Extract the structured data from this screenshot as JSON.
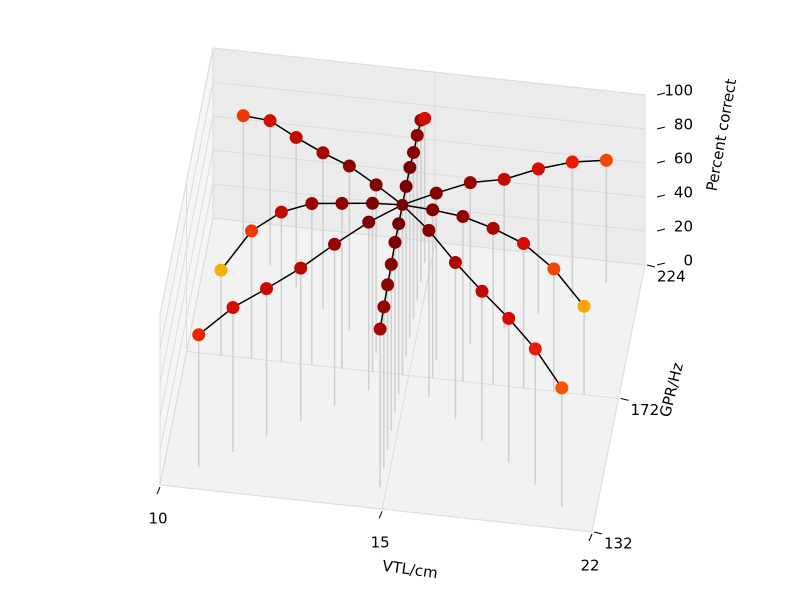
{
  "chart_data": {
    "type": "scatter3d",
    "xlabel": "VTL/cm",
    "ylabel": "GPR/Hz",
    "zlabel": "Percent correct",
    "xscale": "log",
    "yscale": "log",
    "xlim": [
      10,
      22
    ],
    "ylim": [
      132,
      224
    ],
    "zlim": [
      0,
      100
    ],
    "xticks": [
      10,
      15,
      22
    ],
    "yticks": [
      132,
      172,
      224
    ],
    "zticks": [
      0,
      20,
      40,
      60,
      80,
      100
    ],
    "grid": true,
    "line_color": "#000000",
    "stem_color": "#cfcfcf",
    "colormap": [
      "#f2c200",
      "#ff7a00",
      "#e81000",
      "#7a0000"
    ],
    "color_range": [
      45,
      100
    ],
    "center": {
      "x": 14.83,
      "y": 172.0,
      "z": 100
    },
    "series": [
      {
        "x": [
          14.83,
          14.83,
          14.83,
          14.83,
          14.83,
          14.83
        ],
        "y": [
          178.4,
          185.2,
          192.1,
          199.4,
          206.9,
          214.7
        ],
        "values": [
          100,
          100,
          98,
          97,
          95,
          85
        ]
      },
      {
        "x": [
          14.83,
          14.83,
          14.83,
          14.83,
          14.83,
          14.83
        ],
        "y": [
          165.7,
          159.7,
          153.9,
          148.3,
          142.9,
          137.7
        ],
        "values": [
          100,
          100,
          98,
          97,
          95,
          93
        ]
      },
      {
        "x": [
          14.04,
          13.28,
          12.57,
          11.89,
          11.26,
          10.65
        ],
        "y": [
          172.0,
          172.0,
          172.0,
          172.0,
          172.0,
          172.0
        ],
        "values": [
          99,
          97,
          95,
          88,
          75,
          50
        ]
      },
      {
        "x": [
          15.67,
          16.56,
          17.5,
          18.5,
          19.55,
          20.66
        ],
        "y": [
          172.0,
          172.0,
          172.0,
          172.0,
          172.0,
          172.0
        ],
        "values": [
          99,
          97,
          92,
          85,
          72,
          52
        ]
      },
      {
        "x": [
          14.04,
          13.28,
          12.57,
          11.89,
          11.26,
          10.65
        ],
        "y": [
          178.4,
          185.2,
          192.1,
          199.4,
          206.9,
          214.7
        ],
        "values": [
          99,
          97,
          92,
          88,
          85,
          75
        ]
      },
      {
        "x": [
          15.67,
          16.56,
          17.5,
          18.5,
          19.55,
          20.66
        ],
        "y": [
          178.4,
          185.2,
          192.1,
          199.4,
          206.9,
          214.7
        ],
        "values": [
          98,
          95,
          88,
          85,
          80,
          72
        ]
      },
      {
        "x": [
          14.04,
          13.28,
          12.57,
          11.89,
          11.26,
          10.65
        ],
        "y": [
          165.7,
          159.7,
          153.9,
          148.3,
          142.9,
          137.7
        ],
        "values": [
          99,
          95,
          90,
          87,
          85,
          78
        ]
      },
      {
        "x": [
          15.67,
          16.56,
          17.5,
          18.5,
          19.55,
          20.66
        ],
        "y": [
          165.7,
          159.7,
          153.9,
          148.3,
          142.9,
          137.7
        ],
        "values": [
          98,
          92,
          88,
          85,
          80,
          70
        ]
      }
    ]
  }
}
